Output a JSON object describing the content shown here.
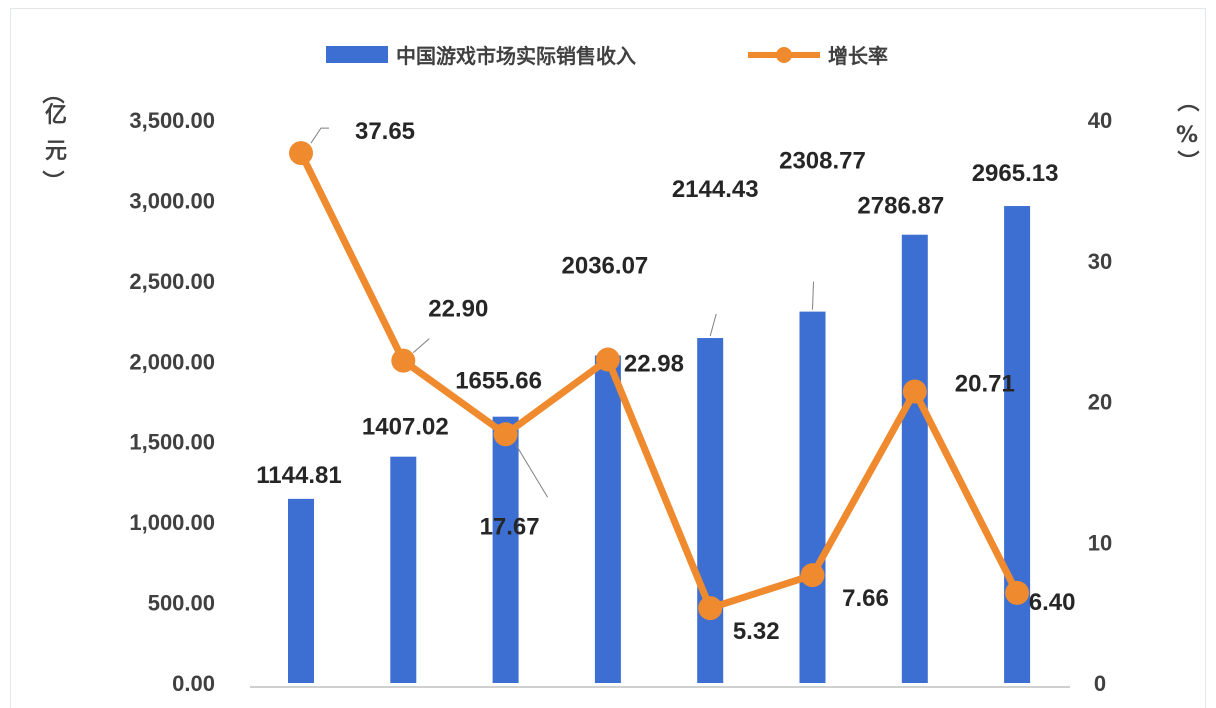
{
  "chart_data": {
    "type": "bar",
    "categories": [
      "",
      "",
      "",
      "",
      "",
      "",
      "",
      ""
    ],
    "series": [
      {
        "name": "中国游戏市场实际销售收入",
        "type": "bar",
        "axis": "left",
        "color": "#3d6fd3",
        "values": [
          1144.81,
          1407.02,
          1655.66,
          2036.07,
          2144.43,
          2308.77,
          2786.87,
          2965.13
        ],
        "labels": [
          "1144.81",
          "1407.02",
          "1655.66",
          "2036.07",
          "2144.43",
          "2308.77",
          "2786.87",
          "2965.13"
        ]
      },
      {
        "name": "增长率",
        "type": "line",
        "axis": "right",
        "color": "#ef8a2e",
        "values": [
          37.65,
          22.9,
          17.67,
          22.98,
          5.32,
          7.66,
          20.71,
          6.4
        ],
        "labels": [
          "37.65",
          "22.90",
          "17.67",
          "22.98",
          "5.32",
          "7.66",
          "20.71",
          "6.40"
        ]
      }
    ],
    "y_left": {
      "ylim": [
        0,
        3500
      ],
      "ticks": [
        "0.00",
        "500.00",
        "1,000.00",
        "1,500.00",
        "2,000.00",
        "2,500.00",
        "3,000.00",
        "3,500.00"
      ],
      "unit_chars": [
        "（",
        "亿",
        "元",
        "）"
      ]
    },
    "y_right": {
      "ylim": [
        0,
        40
      ],
      "ticks": [
        "0",
        "10",
        "20",
        "30",
        "40"
      ],
      "unit_chars": [
        "（",
        "%",
        "）"
      ]
    },
    "legend": {
      "position": "top"
    },
    "grid": false
  }
}
